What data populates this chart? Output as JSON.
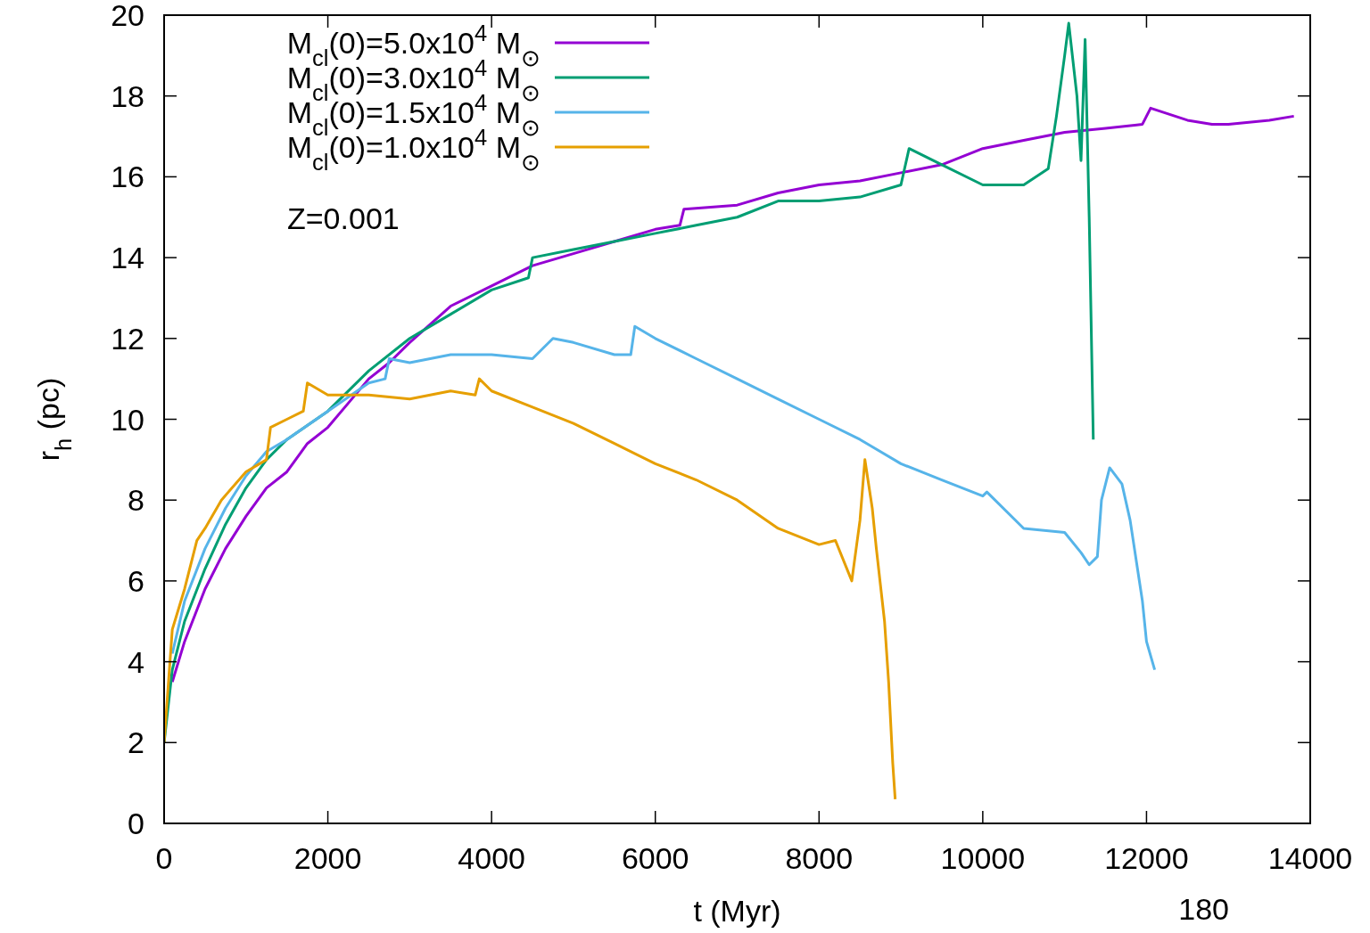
{
  "chart_data": {
    "type": "line",
    "xlabel": "t (Myr)",
    "ylabel": "r$_{h}$ (pc)",
    "xlim": [
      0,
      14000
    ],
    "ylim": [
      0,
      20
    ],
    "xticks": [
      0,
      2000,
      4000,
      6000,
      8000,
      10000,
      12000,
      14000
    ],
    "yticks": [
      0,
      2,
      4,
      6,
      8,
      10,
      12,
      14,
      16,
      18,
      20
    ],
    "grid": false,
    "legend": "top left",
    "marker": "none",
    "line_style": "solid",
    "annotations": [
      "Z=0.001",
      "180"
    ],
    "series": [
      {
        "name": "M$_{cl}$(0)=5.0x10$^{4}$ M$_{⊙}$",
        "color": "#9400d3",
        "x": [
          100,
          250,
          500,
          750,
          1000,
          1250,
          1500,
          1750,
          2000,
          2250,
          2500,
          2750,
          3000,
          3500,
          4000,
          4500,
          5000,
          5500,
          6000,
          6300,
          6350,
          7000,
          7500,
          8000,
          8500,
          9000,
          9500,
          10000,
          10500,
          11000,
          11500,
          11950,
          12050,
          12500,
          12800,
          13000,
          13500,
          13800
        ],
        "values": [
          3.5,
          4.5,
          5.8,
          6.8,
          7.6,
          8.3,
          8.7,
          9.4,
          9.8,
          10.4,
          11.0,
          11.4,
          11.9,
          12.8,
          13.3,
          13.8,
          14.1,
          14.4,
          14.7,
          14.8,
          15.2,
          15.3,
          15.6,
          15.8,
          15.9,
          16.1,
          16.3,
          16.7,
          16.9,
          17.1,
          17.2,
          17.3,
          17.7,
          17.4,
          17.3,
          17.3,
          17.4,
          17.5
        ]
      },
      {
        "name": "M$_{cl}$(0)=3.0x10$^{4}$ M$_{⊙}$",
        "color": "#009e73",
        "x": [
          0,
          100,
          250,
          500,
          750,
          1000,
          1250,
          1500,
          2000,
          2500,
          3000,
          3500,
          4000,
          4450,
          4500,
          5000,
          5500,
          6000,
          6500,
          7000,
          7500,
          8000,
          8500,
          9000,
          9100,
          9500,
          10000,
          10500,
          10800,
          10900,
          11000,
          11050,
          11150,
          11200,
          11250,
          11300,
          11350
        ],
        "values": [
          2,
          3.8,
          5,
          6.3,
          7.4,
          8.3,
          9.0,
          9.5,
          10.2,
          11.2,
          12.0,
          12.6,
          13.2,
          13.5,
          14.0,
          14.2,
          14.4,
          14.6,
          14.8,
          15.0,
          15.4,
          15.4,
          15.5,
          15.8,
          16.7,
          16.3,
          15.8,
          15.8,
          16.2,
          17.5,
          19.0,
          19.8,
          18.0,
          16.4,
          19.4,
          15.0,
          9.5
        ]
      },
      {
        "name": "M$_{cl}$(0)=1.5x10$^{4}$ M$_{⊙}$",
        "color": "#56b4e9",
        "x": [
          100,
          250,
          500,
          750,
          1000,
          1250,
          1500,
          2000,
          2500,
          2700,
          2750,
          3000,
          3500,
          4000,
          4500,
          4750,
          5000,
          5500,
          5700,
          5750,
          6000,
          6500,
          7000,
          7500,
          8000,
          8500,
          9000,
          9500,
          10000,
          10050,
          10500,
          11000,
          11200,
          11300,
          11400,
          11450,
          11550,
          11700,
          11800,
          11950,
          12000,
          12100
        ],
        "values": [
          4.2,
          5.5,
          6.8,
          7.8,
          8.6,
          9.2,
          9.5,
          10.2,
          10.9,
          11.0,
          11.5,
          11.4,
          11.6,
          11.6,
          11.5,
          12.0,
          11.9,
          11.6,
          11.6,
          12.3,
          12.0,
          11.5,
          11.0,
          10.5,
          10.0,
          9.5,
          8.9,
          8.5,
          8.1,
          8.2,
          7.3,
          7.2,
          6.7,
          6.4,
          6.6,
          8.0,
          8.8,
          8.4,
          7.5,
          5.5,
          4.5,
          3.8
        ]
      },
      {
        "name": "M$_{cl}$(0)=1.0x10$^{4}$ M$_{⊙}$",
        "color": "#e69f00",
        "x": [
          0,
          100,
          250,
          400,
          500,
          700,
          1000,
          1250,
          1300,
          1500,
          1700,
          1750,
          2000,
          2500,
          3000,
          3500,
          3800,
          3850,
          4000,
          4500,
          5000,
          5500,
          6000,
          6500,
          7000,
          7500,
          8000,
          8200,
          8400,
          8500,
          8560,
          8650,
          8700,
          8800,
          8850,
          8900,
          8930
        ],
        "values": [
          2,
          4.8,
          5.8,
          7.0,
          7.3,
          8.0,
          8.7,
          9.0,
          9.8,
          10.0,
          10.2,
          10.9,
          10.6,
          10.6,
          10.5,
          10.7,
          10.6,
          11.0,
          10.7,
          10.3,
          9.9,
          9.4,
          8.9,
          8.5,
          8.0,
          7.3,
          6.9,
          7.0,
          6.0,
          7.5,
          9.0,
          7.8,
          6.8,
          5.0,
          3.5,
          1.5,
          0.6
        ]
      }
    ]
  }
}
